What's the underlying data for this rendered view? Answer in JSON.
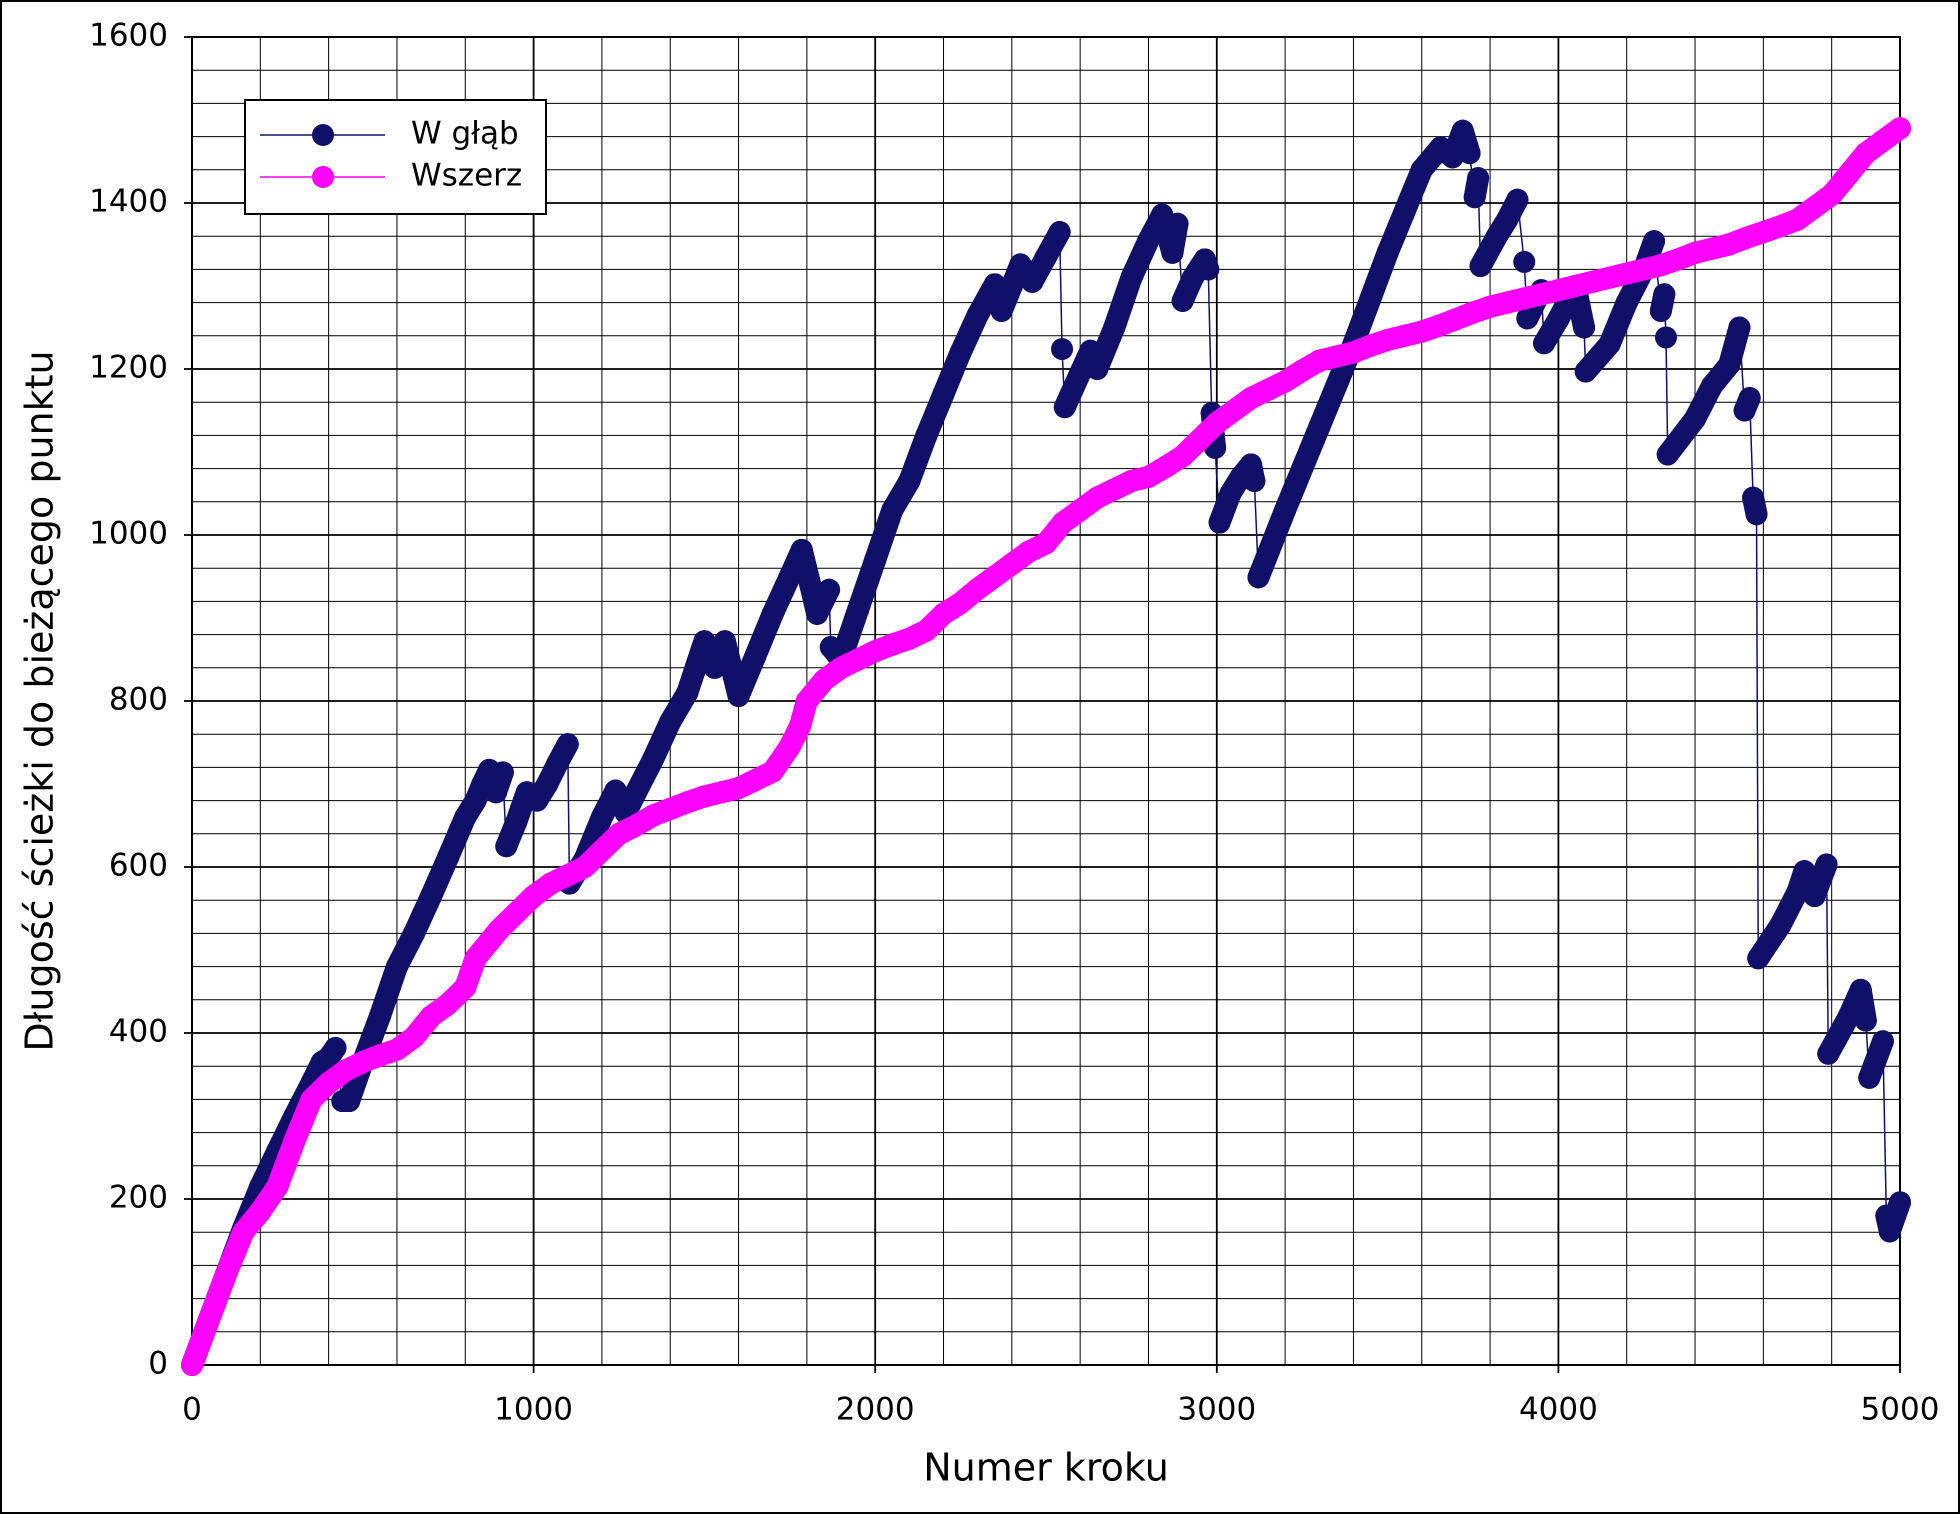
{
  "chart_data": {
    "type": "line",
    "xlabel": "Numer kroku",
    "ylabel": "Długość ścieżki do bieżącego punktu",
    "xlim": [
      0,
      5000
    ],
    "xticks": [
      0,
      1000,
      2000,
      3000,
      4000,
      5000
    ],
    "ylim": [
      0,
      1600
    ],
    "yticks": [
      0,
      200,
      400,
      600,
      800,
      1000,
      1200,
      1400,
      1600
    ],
    "grid": true,
    "minor_grid": {
      "x": 200,
      "y": 40
    },
    "legend": "upper left",
    "series": [
      {
        "name": "W głąb",
        "color": "#10106b",
        "x": [
          0,
          50,
          100,
          150,
          200,
          250,
          300,
          350,
          380,
          400,
          420,
          440,
          460,
          500,
          550,
          600,
          650,
          700,
          750,
          800,
          830,
          850,
          870,
          890,
          910,
          920,
          950,
          980,
          1010,
          1040,
          1070,
          1100,
          1105,
          1150,
          1200,
          1240,
          1270,
          1300,
          1350,
          1400,
          1450,
          1500,
          1530,
          1560,
          1600,
          1650,
          1700,
          1750,
          1785,
          1810,
          1830,
          1865,
          1870,
          1900,
          1950,
          2000,
          2050,
          2100,
          2150,
          2200,
          2250,
          2300,
          2350,
          2370,
          2400,
          2425,
          2460,
          2500,
          2540,
          2547,
          2555,
          2600,
          2630,
          2650,
          2700,
          2750,
          2800,
          2840,
          2870,
          2885,
          2900,
          2930,
          2965,
          2975,
          2985,
          2995,
          3008,
          3040,
          3070,
          3100,
          3110,
          3122,
          3200,
          3300,
          3400,
          3500,
          3600,
          3655,
          3690,
          3720,
          3740,
          3755,
          3765,
          3772,
          3820,
          3850,
          3880,
          3900,
          3909,
          3950,
          3958,
          4000,
          4050,
          4075,
          4080,
          4150,
          4200,
          4250,
          4280,
          4300,
          4310,
          4315,
          4320,
          4400,
          4450,
          4500,
          4530,
          4545,
          4560,
          4570,
          4580,
          4585,
          4650,
          4700,
          4720,
          4750,
          4785,
          4790,
          4850,
          4885,
          4900,
          4910,
          4950,
          4960,
          4970,
          5000
        ],
        "values": [
          0,
          55,
          110,
          165,
          215,
          258,
          300,
          340,
          365,
          370,
          382,
          318,
          318,
          365,
          420,
          480,
          520,
          565,
          612,
          660,
          680,
          700,
          717,
          690,
          714,
          625,
          655,
          690,
          680,
          700,
          725,
          748,
          580,
          610,
          660,
          692,
          665,
          690,
          730,
          775,
          810,
          872,
          840,
          872,
          806,
          855,
          905,
          950,
          982,
          940,
          905,
          934,
          865,
          850,
          910,
          970,
          1030,
          1065,
          1120,
          1170,
          1220,
          1265,
          1302,
          1270,
          1300,
          1326,
          1305,
          1335,
          1365,
          1224,
          1154,
          1195,
          1222,
          1200,
          1250,
          1310,
          1355,
          1386,
          1340,
          1375,
          1282,
          1310,
          1332,
          1320,
          1147,
          1105,
          1015,
          1050,
          1070,
          1085,
          1065,
          949,
          1030,
          1130,
          1230,
          1340,
          1440,
          1467,
          1455,
          1487,
          1460,
          1407,
          1430,
          1324,
          1360,
          1380,
          1404,
          1329,
          1261,
          1295,
          1231,
          1260,
          1300,
          1250,
          1197,
          1230,
          1280,
          1320,
          1354,
          1270,
          1290,
          1238,
          1097,
          1140,
          1180,
          1205,
          1250,
          1150,
          1165,
          1045,
          1025,
          490,
          530,
          570,
          595,
          565,
          603,
          375,
          420,
          452,
          415,
          346,
          390,
          180,
          161,
          196
        ]
      },
      {
        "name": "Wszerz",
        "color": "#ff00ff",
        "x": [
          0,
          50,
          100,
          150,
          200,
          250,
          300,
          350,
          400,
          450,
          500,
          550,
          600,
          650,
          700,
          750,
          800,
          830,
          870,
          900,
          950,
          1000,
          1050,
          1100,
          1150,
          1200,
          1250,
          1300,
          1350,
          1400,
          1450,
          1500,
          1550,
          1600,
          1650,
          1700,
          1750,
          1780,
          1800,
          1850,
          1900,
          1950,
          2000,
          2050,
          2100,
          2150,
          2200,
          2250,
          2300,
          2350,
          2400,
          2450,
          2500,
          2550,
          2600,
          2650,
          2700,
          2750,
          2800,
          2850,
          2900,
          2950,
          3000,
          3050,
          3100,
          3150,
          3200,
          3250,
          3300,
          3350,
          3400,
          3450,
          3500,
          3550,
          3600,
          3650,
          3700,
          3750,
          3800,
          3850,
          3900,
          3950,
          4000,
          4050,
          4100,
          4150,
          4200,
          4250,
          4300,
          4350,
          4400,
          4450,
          4500,
          4550,
          4600,
          4650,
          4700,
          4750,
          4800,
          4850,
          4880,
          4900,
          4950,
          5000
        ],
        "values": [
          0,
          55,
          110,
          160,
          185,
          215,
          270,
          320,
          340,
          355,
          365,
          373,
          380,
          395,
          420,
          435,
          455,
          490,
          510,
          525,
          545,
          565,
          580,
          590,
          600,
          620,
          640,
          650,
          662,
          670,
          678,
          685,
          690,
          695,
          705,
          715,
          745,
          770,
          800,
          825,
          840,
          850,
          860,
          868,
          875,
          885,
          905,
          918,
          935,
          950,
          965,
          980,
          990,
          1015,
          1030,
          1045,
          1055,
          1065,
          1070,
          1082,
          1095,
          1115,
          1135,
          1150,
          1165,
          1175,
          1185,
          1198,
          1210,
          1215,
          1220,
          1228,
          1235,
          1240,
          1245,
          1252,
          1260,
          1268,
          1275,
          1280,
          1285,
          1290,
          1295,
          1300,
          1305,
          1310,
          1315,
          1320,
          1325,
          1332,
          1340,
          1345,
          1350,
          1358,
          1365,
          1372,
          1380,
          1395,
          1410,
          1435,
          1450,
          1460,
          1475,
          1490
        ]
      }
    ]
  }
}
